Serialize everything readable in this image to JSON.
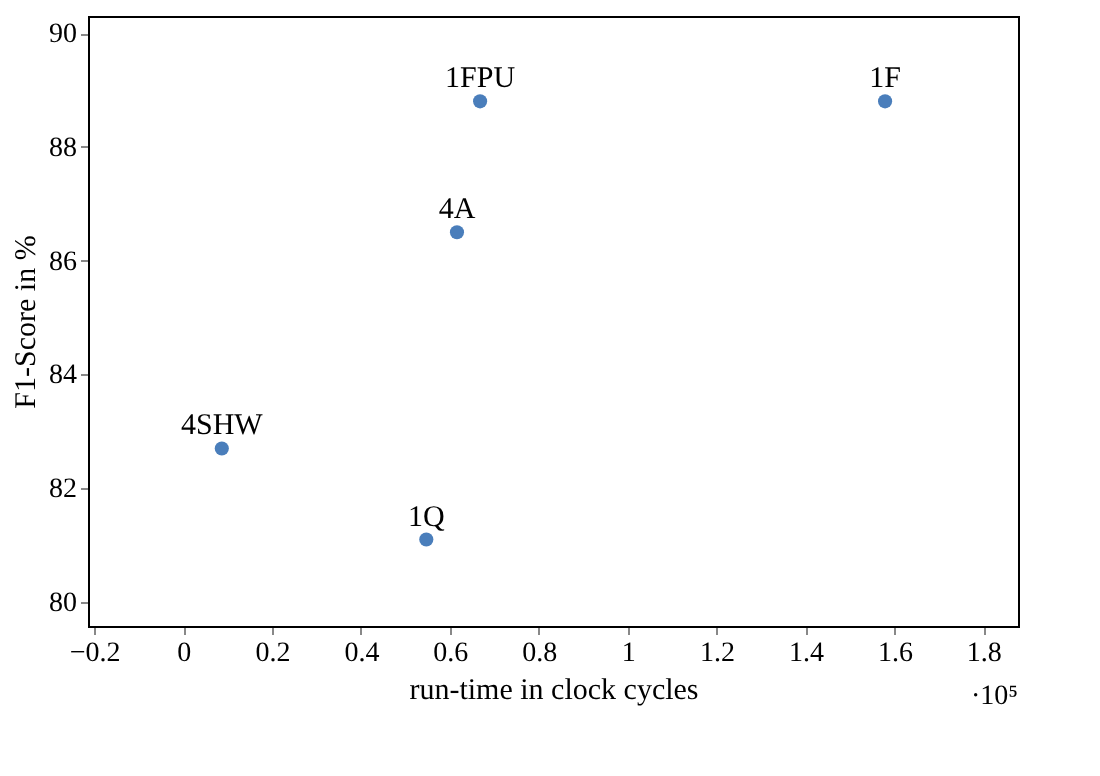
{
  "chart_data": {
    "type": "scatter",
    "xlabel": "run-time in clock cycles",
    "ylabel": "F1-Score in %",
    "x": [
      0.087,
      0.547,
      0.616,
      0.668,
      1.579
    ],
    "series": [
      {
        "color": "#4a7ebb",
        "values": [
          82.7,
          81.1,
          86.5,
          88.8,
          88.8
        ]
      }
    ],
    "annotations": [
      {
        "text": "4SHW",
        "x": 0.087,
        "y": 82.7
      },
      {
        "text": "1Q",
        "x": 0.547,
        "y": 81.1
      },
      {
        "text": "4A",
        "x": 0.616,
        "y": 86.5
      },
      {
        "text": "1FPU",
        "x": 0.668,
        "y": 88.8
      },
      {
        "text": "1F",
        "x": 1.579,
        "y": 88.8
      },
      "·10⁵"
    ],
    "xlim": [
      -0.214,
      1.878
    ],
    "ylim": [
      79.58,
      90.3
    ],
    "xticks": [
      -0.2,
      0,
      0.2,
      0.4,
      0.6,
      0.8,
      1,
      1.2,
      1.4,
      1.6,
      1.8
    ],
    "yticks": [
      80,
      82,
      84,
      86,
      88,
      90
    ],
    "marker": "circle",
    "grid": false
  }
}
